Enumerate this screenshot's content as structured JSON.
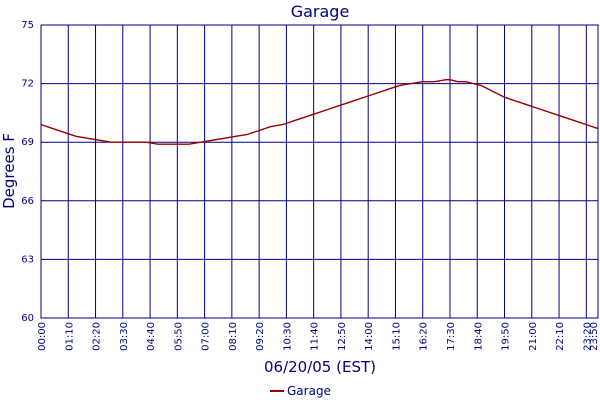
{
  "chart_data": {
    "type": "line",
    "title": "Garage",
    "xlabel": "06/20/05 (EST)",
    "ylabel": "Degrees F",
    "ylim": [
      60,
      75
    ],
    "yticks": [
      60,
      63,
      66,
      69,
      72,
      75
    ],
    "xticks": [
      "00:00",
      "01:10",
      "02:20",
      "03:30",
      "04:40",
      "05:50",
      "07:00",
      "08:10",
      "09:20",
      "10:30",
      "11:40",
      "12:50",
      "14:00",
      "15:10",
      "16:20",
      "17:30",
      "18:40",
      "19:50",
      "21:00",
      "22:10",
      "23:20",
      "23:50"
    ],
    "x_range_minutes": [
      0,
      1430
    ],
    "grid": true,
    "legend_position": "bottom",
    "colors": {
      "series": "#990000",
      "grid": "#000080",
      "axis": "#000080"
    },
    "series": [
      {
        "name": "Garage",
        "x_minutes": [
          0,
          30,
          60,
          90,
          120,
          150,
          180,
          210,
          240,
          270,
          300,
          330,
          350,
          380,
          410,
          440,
          470,
          500,
          530,
          560,
          590,
          620,
          650,
          680,
          710,
          740,
          770,
          800,
          830,
          860,
          890,
          920,
          950,
          980,
          1010,
          1040,
          1050,
          1070,
          1090,
          1110,
          1130,
          1160,
          1190,
          1220,
          1250,
          1280,
          1310,
          1340,
          1370,
          1400,
          1430
        ],
        "values": [
          69.9,
          69.7,
          69.5,
          69.3,
          69.2,
          69.1,
          69.0,
          69.0,
          69.0,
          69.0,
          68.9,
          68.9,
          68.9,
          68.9,
          69.0,
          69.1,
          69.2,
          69.3,
          69.4,
          69.6,
          69.8,
          69.9,
          70.1,
          70.3,
          70.5,
          70.7,
          70.9,
          71.1,
          71.3,
          71.5,
          71.7,
          71.9,
          72.0,
          72.1,
          72.1,
          72.2,
          72.2,
          72.1,
          72.1,
          72.0,
          71.9,
          71.6,
          71.3,
          71.1,
          70.9,
          70.7,
          70.5,
          70.3,
          70.1,
          69.9,
          69.7
        ]
      }
    ]
  }
}
